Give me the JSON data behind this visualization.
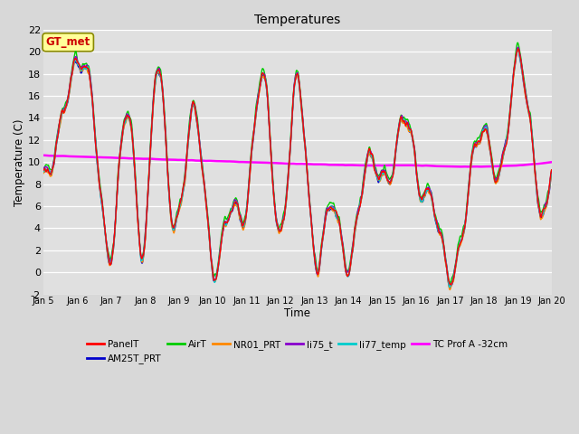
{
  "title": "Temperatures",
  "xlabel": "Time",
  "ylabel": "Temperature (C)",
  "ylim": [
    -2,
    22
  ],
  "background_color": "#d8d8d8",
  "plot_bg_color": "#e0e0e0",
  "grid_color": "white",
  "series": {
    "PanelT": {
      "color": "#ff0000",
      "lw": 1.0
    },
    "AM25T_PRT": {
      "color": "#0000cc",
      "lw": 1.0
    },
    "AirT": {
      "color": "#00cc00",
      "lw": 1.0
    },
    "NR01_PRT": {
      "color": "#ff8800",
      "lw": 1.0
    },
    "li75_t": {
      "color": "#8800cc",
      "lw": 1.0
    },
    "li77_temp": {
      "color": "#00cccc",
      "lw": 1.0
    },
    "TC Prof A -32cm": {
      "color": "#ff00ff",
      "lw": 1.8
    }
  },
  "xtick_labels": [
    "Jan 5",
    "Jan 6",
    "Jan 7",
    "Jan 8",
    "Jan 9",
    "Jan 10",
    "Jan 11",
    "Jan 12",
    "Jan 13",
    "Jan 14",
    "Jan 15",
    "Jan 16",
    "Jan 17",
    "Jan 18",
    "Jan 19",
    "Jan 20"
  ],
  "gt_met_label": "GT_met",
  "gt_met_color": "#cc0000",
  "gt_met_bg": "#ffff99",
  "gt_met_border": "#888800"
}
